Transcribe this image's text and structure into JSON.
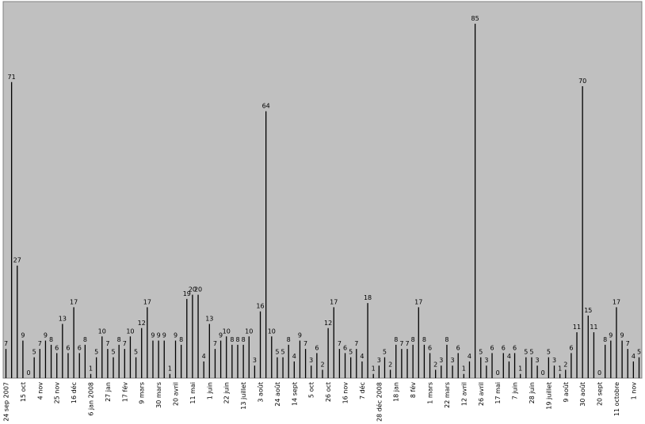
{
  "chart_data": {
    "type": "bar",
    "colors": {
      "plot_bg": "#c0c0c0",
      "bar": "#000000",
      "text": "#000000"
    },
    "grid": false,
    "ylim": [
      0,
      85
    ],
    "values": [
      7,
      71,
      27,
      9,
      0,
      5,
      7,
      9,
      8,
      6,
      13,
      6,
      17,
      6,
      8,
      1,
      5,
      10,
      7,
      5,
      8,
      7,
      10,
      5,
      12,
      17,
      9,
      9,
      9,
      1,
      9,
      8,
      19,
      20,
      20,
      4,
      13,
      7,
      9,
      10,
      8,
      8,
      8,
      10,
      3,
      16,
      64,
      10,
      5,
      5,
      8,
      4,
      9,
      7,
      3,
      6,
      2,
      12,
      17,
      7,
      6,
      5,
      7,
      4,
      18,
      1,
      3,
      5,
      2,
      8,
      7,
      7,
      8,
      17,
      8,
      6,
      2,
      3,
      8,
      3,
      6,
      1,
      4,
      85,
      5,
      3,
      6,
      0,
      6,
      4,
      6,
      1,
      5,
      5,
      3,
      0,
      5,
      3,
      1,
      2,
      6,
      11,
      70,
      15,
      11,
      0,
      8,
      9,
      17,
      9,
      7,
      4,
      5
    ],
    "tick_labels": [
      {
        "index": 0,
        "label": "24 sep 2007"
      },
      {
        "index": 3,
        "label": "15 oct"
      },
      {
        "index": 6,
        "label": "4 nov"
      },
      {
        "index": 9,
        "label": "25 nov"
      },
      {
        "index": 12,
        "label": "16 déc"
      },
      {
        "index": 15,
        "label": "6 jan 2008"
      },
      {
        "index": 18,
        "label": "27 jan"
      },
      {
        "index": 21,
        "label": "17 fév"
      },
      {
        "index": 24,
        "label": "9 mars"
      },
      {
        "index": 27,
        "label": "30 mars"
      },
      {
        "index": 30,
        "label": "20 avril"
      },
      {
        "index": 33,
        "label": "11 mai"
      },
      {
        "index": 36,
        "label": "1 juin"
      },
      {
        "index": 39,
        "label": "22 juin"
      },
      {
        "index": 42,
        "label": "13 juillet"
      },
      {
        "index": 45,
        "label": "3 août"
      },
      {
        "index": 48,
        "label": "24 août"
      },
      {
        "index": 51,
        "label": "14 sept"
      },
      {
        "index": 54,
        "label": "5 oct"
      },
      {
        "index": 57,
        "label": "26 oct"
      },
      {
        "index": 60,
        "label": "16 nov"
      },
      {
        "index": 63,
        "label": "7 déc"
      },
      {
        "index": 66,
        "label": "28 déc 2008"
      },
      {
        "index": 69,
        "label": "18 jan"
      },
      {
        "index": 72,
        "label": "8 fév"
      },
      {
        "index": 75,
        "label": "1 mars"
      },
      {
        "index": 78,
        "label": "22 mars"
      },
      {
        "index": 81,
        "label": "12 avril"
      },
      {
        "index": 84,
        "label": "26 avril"
      },
      {
        "index": 87,
        "label": "17 mai"
      },
      {
        "index": 90,
        "label": "7 juin"
      },
      {
        "index": 93,
        "label": "28 juin"
      },
      {
        "index": 96,
        "label": "19 juillet"
      },
      {
        "index": 99,
        "label": "9 août"
      },
      {
        "index": 102,
        "label": "30 août"
      },
      {
        "index": 105,
        "label": "20 sept"
      },
      {
        "index": 108,
        "label": "11 octobre"
      },
      {
        "index": 111,
        "label": "1 nov"
      }
    ]
  }
}
